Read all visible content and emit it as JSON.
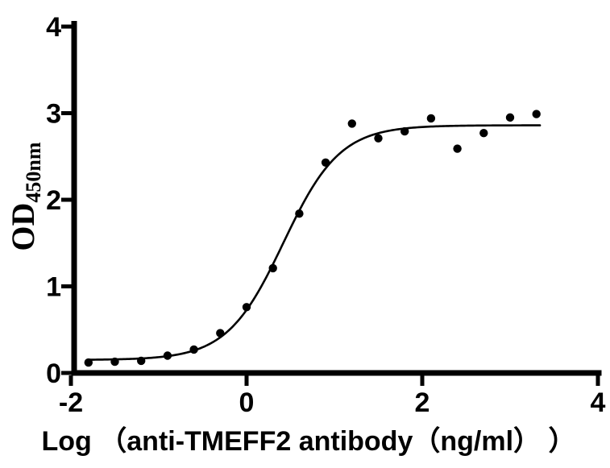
{
  "figure": {
    "background_color": "#ffffff",
    "ink_color": "#000000"
  },
  "chart_data": {
    "type": "scatter",
    "title": "",
    "xlabel": "Log （anti-TMEFF2 antibody（ng/ml） ）",
    "ylabel": "OD",
    "ylabel_subscript": "450nm",
    "xlim": [
      -2,
      4
    ],
    "ylim": [
      0,
      4
    ],
    "xticks": [
      -2,
      0,
      2,
      4
    ],
    "yticks": [
      0,
      1,
      2,
      3,
      4
    ],
    "grid": false,
    "legend_position": "none",
    "series": [
      {
        "name": "anti-TMEFF2 antibody binding (measured OD)",
        "kind": "scatter",
        "marker": "filled-circle",
        "color": "#000000",
        "x": [
          -1.8,
          -1.5,
          -1.2,
          -0.9,
          -0.6,
          -0.3,
          0.0,
          0.3,
          0.6,
          0.9,
          1.2,
          1.5,
          1.8,
          2.1,
          2.4,
          2.7,
          3.0,
          3.3
        ],
        "y": [
          0.12,
          0.13,
          0.14,
          0.2,
          0.27,
          0.46,
          0.76,
          1.21,
          1.84,
          2.43,
          2.88,
          2.71,
          2.79,
          2.94,
          2.59,
          2.77,
          2.95,
          2.99
        ]
      },
      {
        "name": "four-parameter logistic fit curve",
        "kind": "fit-line",
        "color": "#000000",
        "fit": {
          "model": "4PL",
          "bottom": 0.15,
          "top": 2.86,
          "log_ec50": 0.42,
          "hill": 1.35
        },
        "x_range": [
          -1.8,
          3.34
        ]
      }
    ]
  }
}
